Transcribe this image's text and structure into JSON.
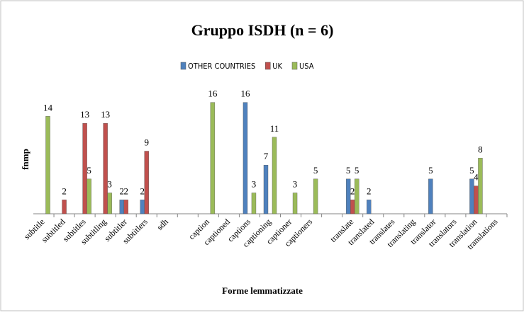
{
  "chart_data": {
    "type": "bar",
    "title": "Gruppo ISDH (n = 6)",
    "x_label": "Forme lemmatizzate",
    "y_label": "fnmp",
    "categories": [
      "subtitle",
      "subtitled",
      "subtitles",
      "subtitling",
      "subtitler",
      "subtitlers",
      "sdh",
      null,
      "caption",
      "captioned",
      "captions",
      "captioning",
      "captioner",
      "captioners",
      null,
      "translate",
      "translated",
      "translates",
      "translating",
      "translator",
      "translators",
      "translation",
      "translations"
    ],
    "series": [
      {
        "name": "OTHER COUNTRIES",
        "color": "#4f81bd",
        "values": [
          null,
          null,
          null,
          null,
          2,
          2,
          null,
          null,
          null,
          null,
          16,
          7,
          null,
          null,
          null,
          5,
          2,
          null,
          null,
          5,
          null,
          5,
          null
        ]
      },
      {
        "name": "UK",
        "color": "#c0504d",
        "values": [
          null,
          2,
          13,
          13,
          2,
          9,
          null,
          null,
          null,
          null,
          null,
          null,
          null,
          null,
          null,
          2,
          null,
          null,
          null,
          null,
          null,
          4,
          null
        ]
      },
      {
        "name": "USA",
        "color": "#9bbb59",
        "values": [
          14,
          null,
          5,
          3,
          null,
          null,
          null,
          null,
          16,
          null,
          3,
          11,
          3,
          5,
          null,
          5,
          null,
          null,
          null,
          null,
          null,
          8,
          null
        ]
      }
    ],
    "ylim": [
      0,
      18
    ],
    "legend": "top"
  }
}
